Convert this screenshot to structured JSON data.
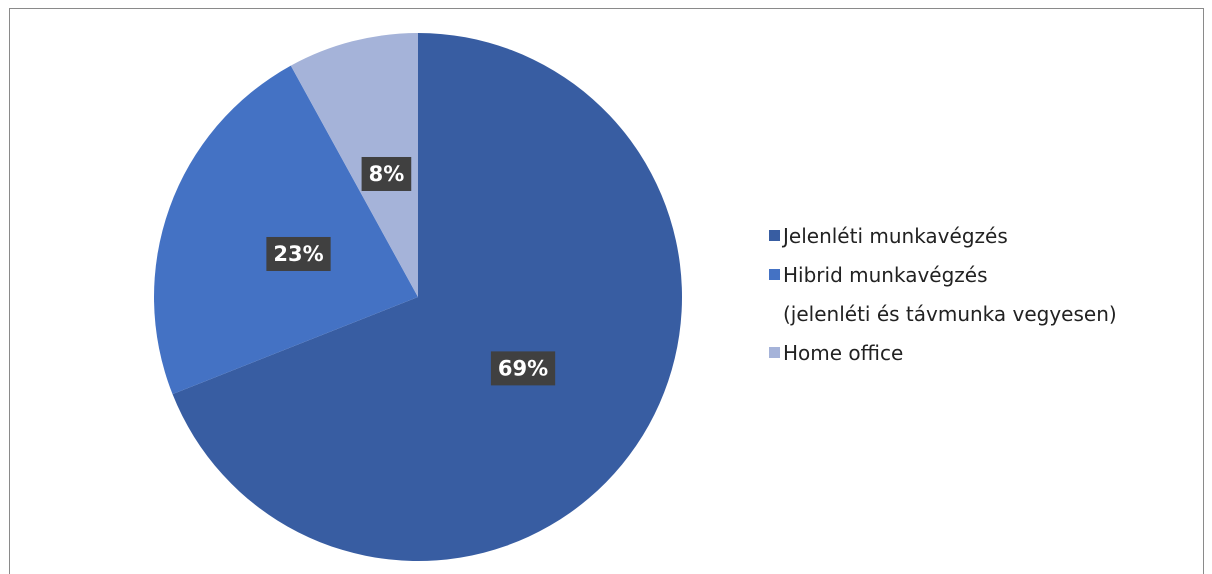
{
  "chart_data": {
    "type": "pie",
    "categories": [
      "Jelenléti munkavégzés",
      "Hibrid munkavégzés\n(jelenléti és távmunka vegyesen)",
      "Home office"
    ],
    "values": [
      69,
      23,
      8
    ],
    "value_labels": [
      "69%",
      "23%",
      "8%"
    ],
    "colors": [
      "#385da2",
      "#4472c4",
      "#a5b3d9"
    ],
    "legend": "right"
  }
}
